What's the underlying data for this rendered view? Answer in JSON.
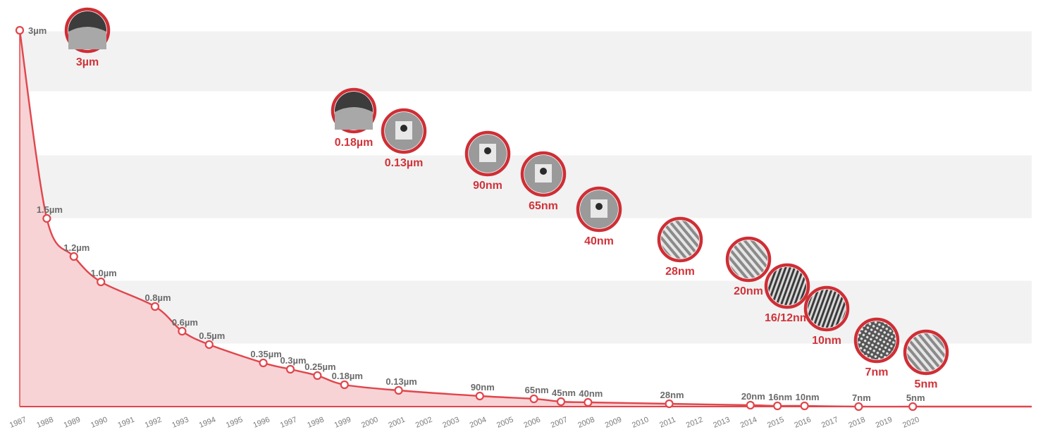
{
  "chart_data": {
    "type": "area",
    "x": [
      "1987",
      "1988",
      "1989",
      "1990",
      "1991",
      "1992",
      "1993",
      "1994",
      "1995",
      "1996",
      "1997",
      "1998",
      "1999",
      "2000",
      "2001",
      "2002",
      "2003",
      "2004",
      "2005",
      "2006",
      "2007",
      "2008",
      "2009",
      "2010",
      "2011",
      "2012",
      "2013",
      "2014",
      "2015",
      "2016",
      "2017",
      "2018",
      "2019",
      "2020"
    ],
    "points": [
      {
        "year": "1987",
        "value_um": 3.0,
        "label": "3µm"
      },
      {
        "year": "1988",
        "value_um": 1.5,
        "label": "1.5µm"
      },
      {
        "year": "1989",
        "value_um": 1.2,
        "label": "1.2µm"
      },
      {
        "year": "1990",
        "value_um": 1.0,
        "label": "1.0µm"
      },
      {
        "year": "1992",
        "value_um": 0.8,
        "label": "0.8µm"
      },
      {
        "year": "1993",
        "value_um": 0.6,
        "label": "0.6µm"
      },
      {
        "year": "1994",
        "value_um": 0.5,
        "label": "0.5µm"
      },
      {
        "year": "1996",
        "value_um": 0.35,
        "label": "0.35µm"
      },
      {
        "year": "1997",
        "value_um": 0.3,
        "label": "0.3µm"
      },
      {
        "year": "1998",
        "value_um": 0.25,
        "label": "0.25µm"
      },
      {
        "year": "1999",
        "value_um": 0.18,
        "label": "0.18µm"
      },
      {
        "year": "2001",
        "value_um": 0.13,
        "label": "0.13µm"
      },
      {
        "year": "2004",
        "value_um": 0.09,
        "label": "90nm"
      },
      {
        "year": "2006",
        "value_um": 0.065,
        "label": "65nm"
      },
      {
        "year": "2007",
        "value_um": 0.045,
        "label": "45nm"
      },
      {
        "year": "2008",
        "value_um": 0.04,
        "label": "40nm"
      },
      {
        "year": "2011",
        "value_um": 0.028,
        "label": "28nm"
      },
      {
        "year": "2014",
        "value_um": 0.02,
        "label": "20nm"
      },
      {
        "year": "2015",
        "value_um": 0.016,
        "label": "16nm"
      },
      {
        "year": "2016",
        "value_um": 0.01,
        "label": "10nm"
      },
      {
        "year": "2018",
        "value_um": 0.007,
        "label": "7nm"
      },
      {
        "year": "2020",
        "value_um": 0.005,
        "label": "5nm"
      }
    ],
    "ylim": [
      0,
      3
    ],
    "grid": true,
    "line_color": "#e0464c",
    "fill_color": "#f7d3d6",
    "band_color": "#f2f2f2",
    "node_images": [
      {
        "caption": "3µm",
        "style": "cross"
      },
      {
        "caption": "0.18µm",
        "style": "cross"
      },
      {
        "caption": "0.13µm",
        "style": "gate"
      },
      {
        "caption": "90nm",
        "style": "gate"
      },
      {
        "caption": "65nm",
        "style": "gate"
      },
      {
        "caption": "40nm",
        "style": "gate"
      },
      {
        "caption": "28nm",
        "style": "fin"
      },
      {
        "caption": "20nm",
        "style": "fin"
      },
      {
        "caption": "16/12nm",
        "style": "lines"
      },
      {
        "caption": "10nm",
        "style": "lines"
      },
      {
        "caption": "7nm",
        "style": "dots"
      },
      {
        "caption": "5nm",
        "style": "fin"
      }
    ]
  }
}
